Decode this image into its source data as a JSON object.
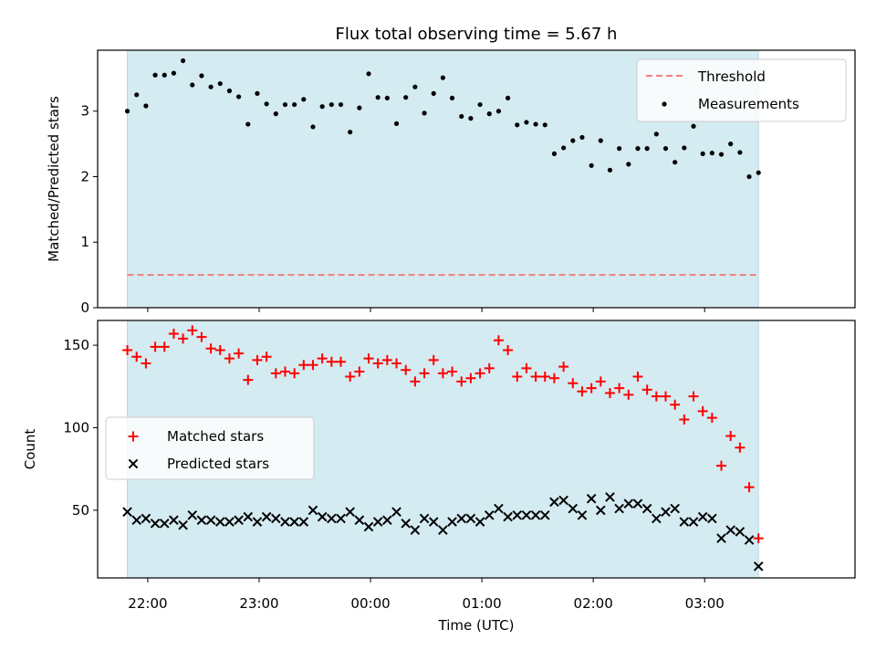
{
  "figure": {
    "title": "Flux total observing time = 5.67 h",
    "xlabel": "Time (UTC)",
    "x_tick_labels": [
      "22:00",
      "23:00",
      "00:00",
      "01:00",
      "02:00",
      "03:00"
    ],
    "x_tick_hours": [
      22,
      23,
      24,
      25,
      26,
      27
    ],
    "xlim": [
      21.55,
      28.35
    ],
    "observing_window": [
      21.8167,
      27.4833
    ],
    "window_color": "#d4ebf1"
  },
  "chart_data": [
    {
      "type": "scatter",
      "ylabel": "Matched/Predicted stars",
      "ylim": [
        0,
        3.93
      ],
      "yticks": [
        "0",
        "1",
        "2",
        "3"
      ],
      "threshold": 0.5,
      "legend_position": "upper right",
      "series": [
        {
          "name": "Threshold",
          "style": "dashed-line",
          "color": "#f08080"
        },
        {
          "name": "Measurements",
          "style": "dot",
          "color": "#000000",
          "y": [
            3.0,
            3.25,
            3.08,
            3.55,
            3.55,
            3.58,
            3.77,
            3.4,
            3.54,
            3.37,
            3.42,
            3.31,
            3.22,
            2.8,
            3.27,
            3.11,
            2.96,
            3.1,
            3.1,
            3.18,
            2.76,
            3.07,
            3.1,
            3.1,
            2.68,
            3.05,
            3.57,
            3.21,
            3.2,
            2.81,
            3.21,
            3.37,
            2.97,
            3.27,
            3.51,
            3.2,
            2.92,
            2.89,
            3.1,
            2.96,
            3.0,
            3.2,
            2.79,
            2.83,
            2.8,
            2.79,
            2.35,
            2.44,
            2.55,
            2.6,
            2.17,
            2.55,
            2.1,
            2.43,
            2.19,
            2.43,
            2.43,
            2.65,
            2.43,
            2.22,
            2.44,
            2.77,
            2.35,
            2.36,
            2.34,
            2.5,
            2.37,
            2.0,
            2.06
          ]
        }
      ]
    },
    {
      "type": "scatter",
      "ylabel": "Count",
      "ylim": [
        9,
        165
      ],
      "yticks": [
        "50",
        "100",
        "150"
      ],
      "legend_position": "center left",
      "series": [
        {
          "name": "Matched stars",
          "marker": "plus",
          "color": "#ff0000",
          "y": [
            147,
            143,
            139,
            149,
            149,
            157,
            154,
            159,
            155,
            148,
            147,
            142,
            145,
            129,
            141,
            143,
            133,
            134,
            133,
            138,
            138,
            142,
            140,
            140,
            131,
            134,
            142,
            139,
            141,
            139,
            135,
            128,
            133,
            141,
            133,
            134,
            128,
            130,
            133,
            136,
            153,
            147,
            131,
            136,
            131,
            131,
            130,
            137,
            127,
            122,
            124,
            128,
            121,
            124,
            120,
            131,
            123,
            119,
            119,
            114,
            105,
            119,
            110,
            106,
            77,
            95,
            88,
            64,
            33
          ]
        },
        {
          "name": "Predicted stars",
          "marker": "x",
          "color": "#000000",
          "y": [
            49,
            44,
            45,
            42,
            42,
            44,
            41,
            47,
            44,
            44,
            43,
            43,
            44,
            46,
            43,
            46,
            45,
            43,
            43,
            43,
            50,
            46,
            45,
            45,
            49,
            44,
            40,
            43,
            44,
            49,
            42,
            38,
            45,
            43,
            38,
            43,
            45,
            45,
            43,
            47,
            51,
            46,
            47,
            47,
            47,
            47,
            55,
            56,
            51,
            47,
            57,
            50,
            58,
            51,
            54,
            54,
            51,
            45,
            49,
            51,
            43,
            43,
            46,
            45,
            33,
            38,
            37,
            32,
            16
          ]
        }
      ]
    }
  ]
}
